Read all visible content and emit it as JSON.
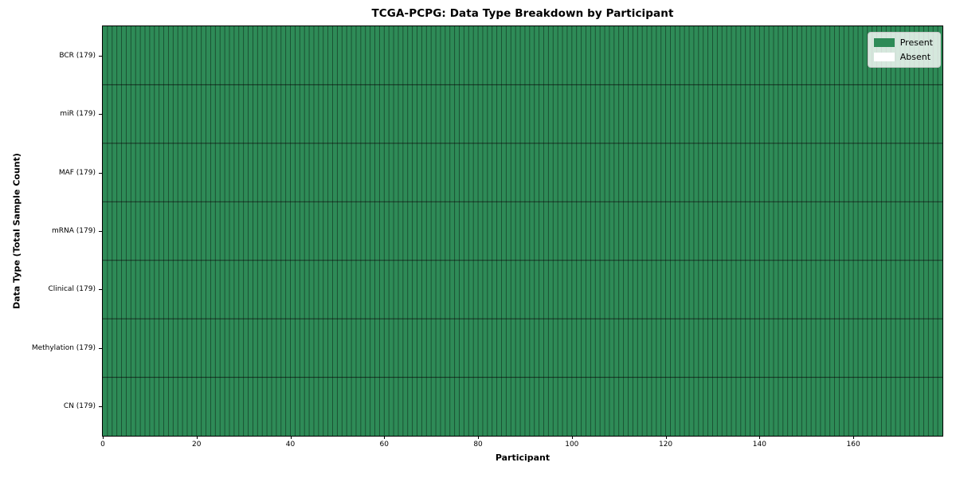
{
  "figure": {
    "title": "TCGA-PCPG: Data Type Breakdown by Participant",
    "xlabel": "Participant",
    "ylabel": "Data Type (Total Sample Count)"
  },
  "legend": {
    "position": "upper right",
    "items": [
      {
        "name": "present",
        "label": "Present",
        "color": "#2e8b57"
      },
      {
        "name": "absent",
        "label": "Absent",
        "color": "#ffffff"
      }
    ]
  },
  "chart_data": {
    "type": "heatmap",
    "title": "TCGA-PCPG: Data Type Breakdown by Participant",
    "xlabel": "Participant",
    "ylabel": "Data Type (Total Sample Count)",
    "n_participants": 179,
    "x_axis": {
      "min": 0,
      "max": 179,
      "ticks": [
        0,
        20,
        40,
        60,
        80,
        100,
        120,
        140,
        160
      ]
    },
    "rows": [
      {
        "label": "BCR (179)",
        "data_type": "BCR",
        "total_sample_count": 179,
        "present": 179,
        "absent": 0
      },
      {
        "label": "miR (179)",
        "data_type": "miR",
        "total_sample_count": 179,
        "present": 179,
        "absent": 0
      },
      {
        "label": "MAF (179)",
        "data_type": "MAF",
        "total_sample_count": 179,
        "present": 179,
        "absent": 0
      },
      {
        "label": "mRNA (179)",
        "data_type": "mRNA",
        "total_sample_count": 179,
        "present": 179,
        "absent": 0
      },
      {
        "label": "Clinical (179)",
        "data_type": "Clinical",
        "total_sample_count": 179,
        "present": 179,
        "absent": 0
      },
      {
        "label": "Methylation (179)",
        "data_type": "Methylation",
        "total_sample_count": 179,
        "present": 179,
        "absent": 0
      },
      {
        "label": "CN (179)",
        "data_type": "CN",
        "total_sample_count": 179,
        "present": 179,
        "absent": 0
      }
    ],
    "all_cells_present": true,
    "colors": {
      "present": "#2e8b57",
      "absent": "#ffffff",
      "cell_edge": "rgba(0,0,0,0.45)",
      "row_separator": "rgba(0,0,0,0.6)",
      "spine": "#000000"
    },
    "grid": "cell-edges",
    "legend_position": "upper right"
  }
}
